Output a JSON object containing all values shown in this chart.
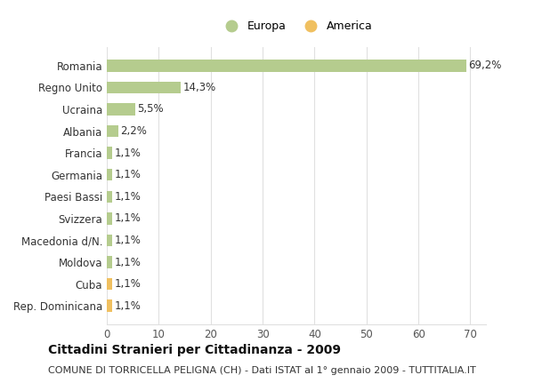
{
  "categories": [
    "Rep. Dominicana",
    "Cuba",
    "Moldova",
    "Macedonia d/N.",
    "Svizzera",
    "Paesi Bassi",
    "Germania",
    "Francia",
    "Albania",
    "Ucraina",
    "Regno Unito",
    "Romania"
  ],
  "values": [
    1.1,
    1.1,
    1.1,
    1.1,
    1.1,
    1.1,
    1.1,
    1.1,
    2.2,
    5.5,
    14.3,
    69.2
  ],
  "labels": [
    "1,1%",
    "1,1%",
    "1,1%",
    "1,1%",
    "1,1%",
    "1,1%",
    "1,1%",
    "1,1%",
    "2,2%",
    "5,5%",
    "14,3%",
    "69,2%"
  ],
  "colors": [
    "#f0c060",
    "#f0c060",
    "#b5cc8e",
    "#b5cc8e",
    "#b5cc8e",
    "#b5cc8e",
    "#b5cc8e",
    "#b5cc8e",
    "#b5cc8e",
    "#b5cc8e",
    "#b5cc8e",
    "#b5cc8e"
  ],
  "europa_color": "#b5cc8e",
  "america_color": "#f0c060",
  "title": "Cittadini Stranieri per Cittadinanza - 2009",
  "subtitle": "COMUNE DI TORRICELLA PELIGNA (CH) - Dati ISTAT al 1° gennaio 2009 - TUTTITALIA.IT",
  "xlim": [
    0,
    73
  ],
  "background_color": "#ffffff",
  "grid_color": "#e0e0e0",
  "bar_height": 0.55,
  "title_fontsize": 10,
  "subtitle_fontsize": 8,
  "tick_fontsize": 8.5,
  "label_fontsize": 8.5
}
